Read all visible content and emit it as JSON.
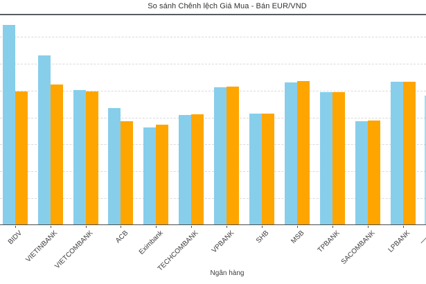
{
  "chart_data": {
    "type": "bar",
    "title": "So sánh Chênh lệch Giá Mua - Bán EUR/VND",
    "xlabel": "Ngân hàng",
    "ylabel": "",
    "categories": [
      "BIDV",
      "VIETINBANK",
      "VIETCOMBANK",
      "ACB",
      "Eximbank",
      "TECHCOMBANK",
      "VPBANK",
      "SHB",
      "MSB",
      "TPBANK",
      "SACOMBANK",
      "LPBANK"
    ],
    "series": [
      {
        "name": "blue",
        "color": "#87CEEB",
        "values": [
          7.43,
          6.3,
          5.01,
          4.34,
          3.62,
          4.08,
          5.12,
          4.14,
          5.31,
          4.93,
          3.87,
          5.34
        ]
      },
      {
        "name": "orange",
        "color": "#FFA500",
        "values": [
          4.96,
          5.22,
          4.96,
          3.85,
          3.72,
          4.11,
          5.15,
          4.14,
          5.35,
          4.93,
          3.88,
          5.34
        ]
      }
    ],
    "y_units_note": "y tick labels not visible (left edge cropped); values estimated in gridline units, 1 unit per dashed gridline",
    "ylim": [
      0,
      7.8
    ],
    "gridlines": {
      "style": "dashed",
      "count": 7,
      "spacing_units": 1,
      "color": "#d9d9d9"
    },
    "legend_position": "none",
    "partial_13th_category": {
      "series": "blue",
      "value": 4.81,
      "label": ""
    }
  },
  "colors": {
    "background": "#ffffff",
    "bar_blue": "#87CEEB",
    "bar_orange": "#FFA500",
    "top_spine": "#595c5e",
    "axis_line": "#4d4d4d",
    "gridline": "#d9d9d9",
    "text": "#3a3a3a"
  }
}
